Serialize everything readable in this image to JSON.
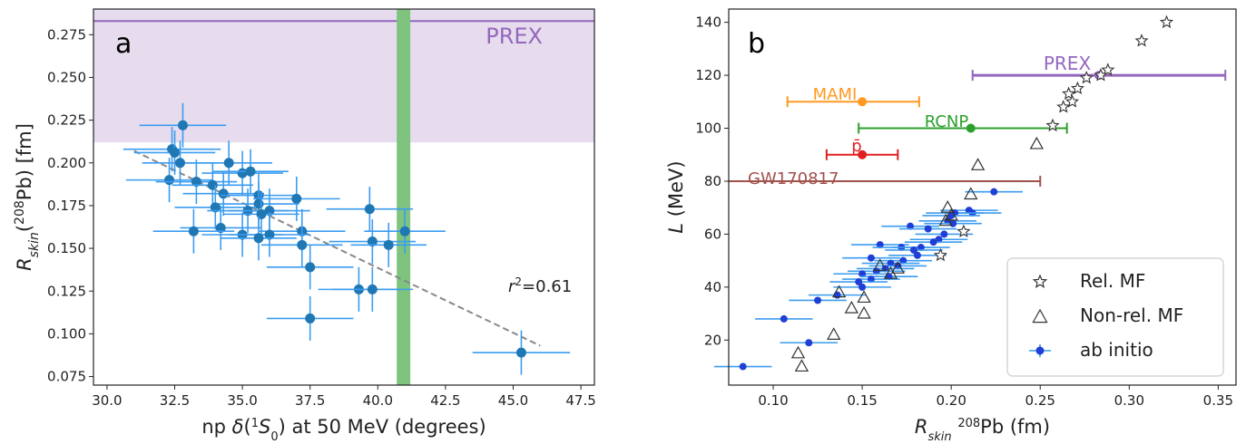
{
  "chart_data": [
    {
      "panel": "a",
      "type": "scatter",
      "title": "",
      "xlabel_parts": [
        "np ",
        "δ",
        "(",
        "1",
        "S",
        "0",
        ") at 50 MeV (degrees)"
      ],
      "ylabel_parts": [
        "R",
        "skin",
        "(",
        "208",
        "Pb) [fm]"
      ],
      "xlim": [
        29.5,
        48.0
      ],
      "ylim": [
        0.07,
        0.29
      ],
      "xticks": [
        "30.0",
        "32.5",
        "35.0",
        "37.5",
        "40.0",
        "42.5",
        "45.0",
        "47.5"
      ],
      "yticks": [
        "0.075",
        "0.100",
        "0.125",
        "0.150",
        "0.175",
        "0.200",
        "0.225",
        "0.250",
        "0.275"
      ],
      "grid": false,
      "colors": {
        "points": "#1f77b4",
        "errors": "#3b9cf0",
        "prex_band": "#e6dcee",
        "prex_line": "#9467bd",
        "green_band": "#7ec47e",
        "fit_line": "#888888"
      },
      "prex": {
        "label": "PREX",
        "lower": 0.212,
        "central": 0.283
      },
      "green_band_x": [
        40.7,
        41.2
      ],
      "fit_line": {
        "x": [
          31.0,
          46.0
        ],
        "y": [
          0.207,
          0.093
        ]
      },
      "annotation_parts": [
        "r",
        "2",
        "=0.61"
      ],
      "points": [
        {
          "x": 32.8,
          "y": 0.222,
          "xerr": 1.6,
          "yerr": 0.013
        },
        {
          "x": 32.4,
          "y": 0.208,
          "xerr": 1.8,
          "yerr": 0.013
        },
        {
          "x": 32.5,
          "y": 0.206,
          "xerr": 1.5,
          "yerr": 0.013
        },
        {
          "x": 32.7,
          "y": 0.2,
          "xerr": 1.4,
          "yerr": 0.013
        },
        {
          "x": 34.5,
          "y": 0.2,
          "xerr": 1.6,
          "yerr": 0.013
        },
        {
          "x": 35.0,
          "y": 0.194,
          "xerr": 1.5,
          "yerr": 0.013
        },
        {
          "x": 35.3,
          "y": 0.195,
          "xerr": 1.4,
          "yerr": 0.013
        },
        {
          "x": 32.3,
          "y": 0.19,
          "xerr": 1.6,
          "yerr": 0.013
        },
        {
          "x": 33.3,
          "y": 0.189,
          "xerr": 1.5,
          "yerr": 0.013
        },
        {
          "x": 33.9,
          "y": 0.187,
          "xerr": 1.5,
          "yerr": 0.013
        },
        {
          "x": 34.3,
          "y": 0.182,
          "xerr": 1.5,
          "yerr": 0.013
        },
        {
          "x": 35.6,
          "y": 0.181,
          "xerr": 1.4,
          "yerr": 0.013
        },
        {
          "x": 37.0,
          "y": 0.179,
          "xerr": 1.6,
          "yerr": 0.013
        },
        {
          "x": 35.6,
          "y": 0.176,
          "xerr": 1.5,
          "yerr": 0.013
        },
        {
          "x": 34.0,
          "y": 0.174,
          "xerr": 1.5,
          "yerr": 0.013
        },
        {
          "x": 35.2,
          "y": 0.172,
          "xerr": 1.5,
          "yerr": 0.013
        },
        {
          "x": 36.0,
          "y": 0.172,
          "xerr": 1.5,
          "yerr": 0.013
        },
        {
          "x": 39.7,
          "y": 0.173,
          "xerr": 1.6,
          "yerr": 0.013
        },
        {
          "x": 35.7,
          "y": 0.17,
          "xerr": 1.4,
          "yerr": 0.013
        },
        {
          "x": 34.2,
          "y": 0.162,
          "xerr": 1.5,
          "yerr": 0.013
        },
        {
          "x": 33.2,
          "y": 0.16,
          "xerr": 1.5,
          "yerr": 0.013
        },
        {
          "x": 37.2,
          "y": 0.16,
          "xerr": 1.6,
          "yerr": 0.013
        },
        {
          "x": 41.0,
          "y": 0.16,
          "xerr": 1.5,
          "yerr": 0.013
        },
        {
          "x": 35.0,
          "y": 0.158,
          "xerr": 1.5,
          "yerr": 0.013
        },
        {
          "x": 36.0,
          "y": 0.158,
          "xerr": 1.5,
          "yerr": 0.013
        },
        {
          "x": 35.6,
          "y": 0.156,
          "xerr": 1.4,
          "yerr": 0.013
        },
        {
          "x": 39.8,
          "y": 0.154,
          "xerr": 1.6,
          "yerr": 0.013
        },
        {
          "x": 40.4,
          "y": 0.152,
          "xerr": 1.4,
          "yerr": 0.013
        },
        {
          "x": 37.2,
          "y": 0.152,
          "xerr": 1.5,
          "yerr": 0.013
        },
        {
          "x": 37.5,
          "y": 0.139,
          "xerr": 1.6,
          "yerr": 0.013
        },
        {
          "x": 39.3,
          "y": 0.126,
          "xerr": 1.5,
          "yerr": 0.013
        },
        {
          "x": 39.8,
          "y": 0.126,
          "xerr": 1.5,
          "yerr": 0.013
        },
        {
          "x": 37.5,
          "y": 0.109,
          "xerr": 1.6,
          "yerr": 0.013
        },
        {
          "x": 45.3,
          "y": 0.089,
          "xerr": 1.8,
          "yerr": 0.013
        }
      ]
    },
    {
      "panel": "b",
      "type": "scatter",
      "title": "",
      "xlabel_parts": [
        "R",
        "skin",
        " ",
        "208",
        "Pb (fm)"
      ],
      "ylabel_parts": [
        "L",
        " (MeV)"
      ],
      "xlim": [
        0.075,
        0.36
      ],
      "ylim": [
        3,
        145
      ],
      "xticks": [
        "0.10",
        "0.15",
        "0.20",
        "0.25",
        "0.30",
        "0.35"
      ],
      "yticks": [
        "20",
        "40",
        "60",
        "80",
        "100",
        "120",
        "140"
      ],
      "grid": false,
      "legend_position": "bottom-right",
      "legend": [
        "Rel. MF",
        "Non-rel. MF",
        "ab initio"
      ],
      "colors": {
        "ab_initio": "#1f3fd6",
        "markers_edge": "#333333",
        "prex": "#9467bd",
        "mami": "#ff9922",
        "rcnp": "#2ca02c",
        "pbar": "#e02020",
        "gw": "#a0524d"
      },
      "experiments": [
        {
          "label": "PREX",
          "x": 0.283,
          "xmin": 0.212,
          "xmax": 0.354,
          "y": 120
        },
        {
          "label": "MAMI",
          "x": 0.15,
          "xmin": 0.108,
          "xmax": 0.182,
          "y": 110
        },
        {
          "label": "RCNP",
          "x": 0.211,
          "xmin": 0.148,
          "xmax": 0.265,
          "y": 100
        },
        {
          "label": "p̄",
          "x": 0.15,
          "xmin": 0.13,
          "xmax": 0.17,
          "y": 90
        },
        {
          "label": "GW170817",
          "x": null,
          "xmin": 0.075,
          "xmax": 0.25,
          "y": 80
        }
      ],
      "series": [
        {
          "name": "Rel. MF",
          "marker": "star",
          "points": [
            {
              "x": 0.321,
              "y": 140
            },
            {
              "x": 0.307,
              "y": 133
            },
            {
              "x": 0.288,
              "y": 122
            },
            {
              "x": 0.284,
              "y": 120
            },
            {
              "x": 0.276,
              "y": 119
            },
            {
              "x": 0.271,
              "y": 115
            },
            {
              "x": 0.266,
              "y": 113
            },
            {
              "x": 0.268,
              "y": 110
            },
            {
              "x": 0.263,
              "y": 108
            },
            {
              "x": 0.257,
              "y": 101
            },
            {
              "x": 0.207,
              "y": 61
            },
            {
              "x": 0.194,
              "y": 52
            }
          ]
        },
        {
          "name": "Non-rel. MF",
          "marker": "triangle",
          "points": [
            {
              "x": 0.248,
              "y": 94
            },
            {
              "x": 0.215,
              "y": 86
            },
            {
              "x": 0.211,
              "y": 75
            },
            {
              "x": 0.198,
              "y": 70
            },
            {
              "x": 0.2,
              "y": 67
            },
            {
              "x": 0.197,
              "y": 65
            },
            {
              "x": 0.16,
              "y": 48
            },
            {
              "x": 0.166,
              "y": 45
            },
            {
              "x": 0.17,
              "y": 47
            },
            {
              "x": 0.137,
              "y": 38
            },
            {
              "x": 0.151,
              "y": 36
            },
            {
              "x": 0.144,
              "y": 32
            },
            {
              "x": 0.151,
              "y": 30
            },
            {
              "x": 0.134,
              "y": 22
            },
            {
              "x": 0.114,
              "y": 15
            },
            {
              "x": 0.116,
              "y": 10
            }
          ]
        },
        {
          "name": "ab initio",
          "marker": "dot",
          "xerr": 0.009,
          "points": [
            {
              "x": 0.224,
              "y": 76
            },
            {
              "x": 0.21,
              "y": 69
            },
            {
              "x": 0.212,
              "y": 68
            },
            {
              "x": 0.202,
              "y": 68
            },
            {
              "x": 0.2,
              "y": 67
            },
            {
              "x": 0.198,
              "y": 65
            },
            {
              "x": 0.201,
              "y": 64
            },
            {
              "x": 0.177,
              "y": 63
            },
            {
              "x": 0.187,
              "y": 62
            },
            {
              "x": 0.16,
              "y": 56
            },
            {
              "x": 0.172,
              "y": 55
            },
            {
              "x": 0.196,
              "y": 60
            },
            {
              "x": 0.193,
              "y": 58
            },
            {
              "x": 0.19,
              "y": 57
            },
            {
              "x": 0.183,
              "y": 55
            },
            {
              "x": 0.179,
              "y": 54
            },
            {
              "x": 0.181,
              "y": 52
            },
            {
              "x": 0.155,
              "y": 51
            },
            {
              "x": 0.173,
              "y": 50
            },
            {
              "x": 0.166,
              "y": 49
            },
            {
              "x": 0.17,
              "y": 48
            },
            {
              "x": 0.163,
              "y": 47
            },
            {
              "x": 0.158,
              "y": 46
            },
            {
              "x": 0.15,
              "y": 45
            },
            {
              "x": 0.165,
              "y": 44
            },
            {
              "x": 0.155,
              "y": 43
            },
            {
              "x": 0.148,
              "y": 42
            },
            {
              "x": 0.15,
              "y": 40
            },
            {
              "x": 0.136,
              "y": 37
            },
            {
              "x": 0.125,
              "y": 35
            },
            {
              "x": 0.106,
              "y": 28
            },
            {
              "x": 0.12,
              "y": 19
            },
            {
              "x": 0.083,
              "y": 10
            }
          ]
        }
      ]
    }
  ]
}
